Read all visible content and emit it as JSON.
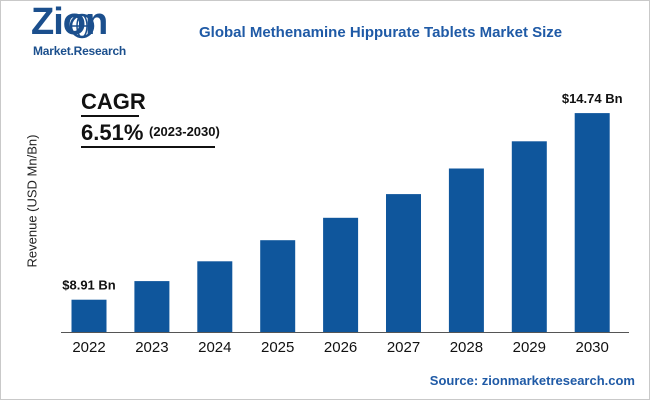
{
  "brand": {
    "logo_main": "Zion",
    "logo_sub": "Market.Research",
    "logo_color": "#1b4f8d"
  },
  "source_text": "Source: zionmarketresearch.com",
  "cagr": {
    "label": "CAGR",
    "value": "6.51%",
    "period": "(2023-2030)"
  },
  "chart_data": {
    "type": "bar",
    "title": "Global Methenamine Hippurate Tablets Market Size",
    "xlabel": "",
    "ylabel": "Revenue (USD Mn/Bn)",
    "categories": [
      "2022",
      "2023",
      "2024",
      "2025",
      "2026",
      "2027",
      "2028",
      "2029",
      "2030"
    ],
    "series": [
      {
        "values": [
          8.91,
          9.49,
          10.11,
          10.77,
          11.47,
          12.21,
          13.01,
          13.86,
          14.74
        ]
      }
    ],
    "data_labels": [
      "$8.91 Bn",
      "",
      "",
      "",
      "",
      "",
      "",
      "",
      "$14.74 Bn"
    ],
    "bar_color": "#0f569c",
    "ylim": [
      7.9,
      14.9
    ],
    "grid": false,
    "legend": "none"
  }
}
